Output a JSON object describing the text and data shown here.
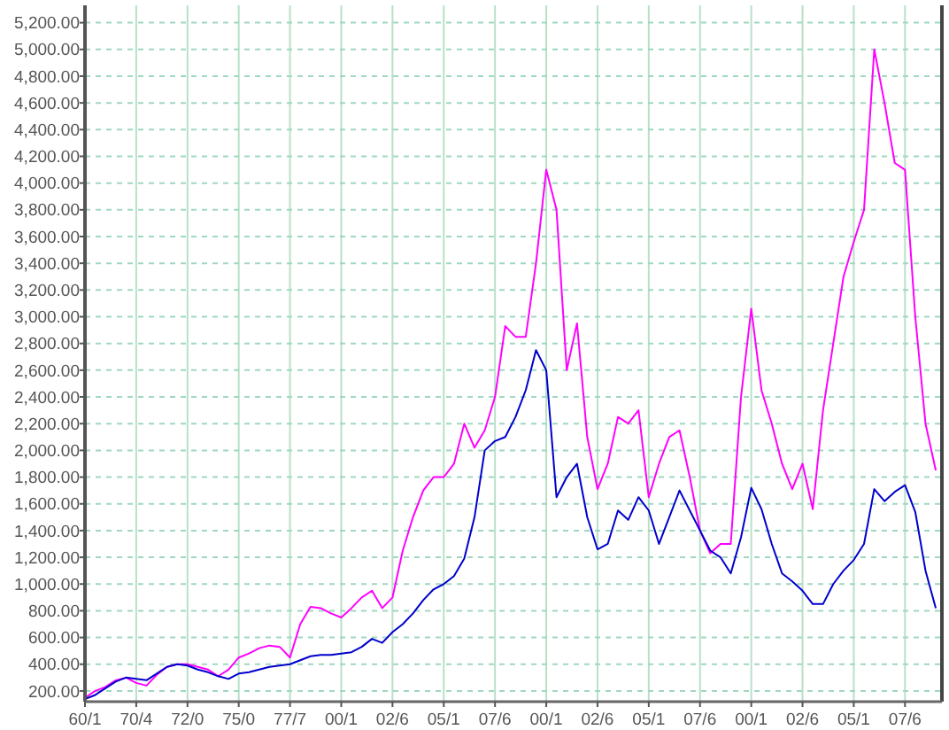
{
  "chart_data": {
    "type": "line",
    "categories": [
      "60/1",
      null,
      null,
      null,
      null,
      "70/4",
      null,
      null,
      null,
      null,
      "72/0",
      null,
      null,
      null,
      null,
      "75/0",
      null,
      null,
      null,
      null,
      "77/7",
      null,
      null,
      null,
      null,
      "00/1",
      null,
      null,
      null,
      null,
      "02/6",
      null,
      null,
      null,
      null,
      "05/1",
      null,
      null,
      null,
      null,
      "07/6",
      null,
      null,
      null,
      null,
      "00/1",
      null,
      null,
      null,
      null,
      "02/6",
      null,
      null,
      null,
      null,
      "05/1",
      null,
      null,
      null,
      null,
      "07/6",
      null,
      null,
      null,
      null,
      "00/1",
      null,
      null,
      null,
      null,
      "02/6",
      null,
      null,
      null,
      null,
      "05/1",
      null,
      null,
      null,
      null,
      "07/6",
      null,
      null,
      null
    ],
    "series": [
      {
        "color": "#ff00ff",
        "values": [
          150,
          200,
          230,
          280,
          300,
          260,
          240,
          320,
          380,
          400,
          400,
          380,
          360,
          310,
          360,
          450,
          480,
          520,
          540,
          530,
          450,
          700,
          830,
          820,
          780,
          750,
          820,
          900,
          950,
          820,
          900,
          1250,
          1500,
          1700,
          1800,
          1800,
          1900,
          2200,
          2020,
          2150,
          2400,
          2930,
          2850,
          2850,
          3400,
          4100,
          3800,
          2600,
          2950,
          2100,
          1710,
          1900,
          2250,
          2200,
          2300,
          1650,
          1900,
          2100,
          2150,
          1800,
          1400,
          1230,
          1300,
          1300,
          2400,
          3060,
          2450,
          2200,
          1900,
          1710,
          1900,
          1560,
          2300,
          2800,
          3300,
          3560,
          3800,
          5000,
          4600,
          4150,
          4100,
          3000,
          2200,
          1850
        ]
      },
      {
        "color": "#0000cc",
        "values": [
          140,
          170,
          220,
          270,
          300,
          290,
          280,
          330,
          380,
          400,
          390,
          360,
          340,
          310,
          290,
          330,
          340,
          360,
          380,
          390,
          400,
          430,
          460,
          470,
          470,
          480,
          490,
          530,
          590,
          560,
          640,
          700,
          780,
          880,
          960,
          1000,
          1060,
          1190,
          1500,
          2000,
          2070,
          2100,
          2250,
          2450,
          2750,
          2600,
          1650,
          1800,
          1900,
          1500,
          1260,
          1300,
          1550,
          1480,
          1650,
          1550,
          1300,
          1500,
          1700,
          1550,
          1400,
          1250,
          1200,
          1080,
          1350,
          1720,
          1560,
          1300,
          1080,
          1020,
          950,
          850,
          850,
          1000,
          1100,
          1180,
          1300,
          1710,
          1620,
          1690,
          1740,
          1540,
          1100,
          820
        ]
      }
    ],
    "ylim": [
      120,
      5330
    ],
    "yticks": [
      {
        "value": 200,
        "label": "200.00"
      },
      {
        "value": 400,
        "label": "400.00"
      },
      {
        "value": 600,
        "label": "600.00"
      },
      {
        "value": 800,
        "label": "800.00"
      },
      {
        "value": 1000,
        "label": "1,000.00"
      },
      {
        "value": 1200,
        "label": "1,200.00"
      },
      {
        "value": 1400,
        "label": "1,400.00"
      },
      {
        "value": 1600,
        "label": "1,600.00"
      },
      {
        "value": 1800,
        "label": "1,800.00"
      },
      {
        "value": 2000,
        "label": "2,000.00"
      },
      {
        "value": 2200,
        "label": "2,200.00"
      },
      {
        "value": 2400,
        "label": "2,400.00"
      },
      {
        "value": 2600,
        "label": "2,600.00"
      },
      {
        "value": 2800,
        "label": "2,800.00"
      },
      {
        "value": 3000,
        "label": "3,000.00"
      },
      {
        "value": 3200,
        "label": "3,200.00"
      },
      {
        "value": 3400,
        "label": "3,400.00"
      },
      {
        "value": 3600,
        "label": "3,600.00"
      },
      {
        "value": 3800,
        "label": "3,800.00"
      },
      {
        "value": 4000,
        "label": "4,000.00"
      },
      {
        "value": 4200,
        "label": "4,200.00"
      },
      {
        "value": 4400,
        "label": "4,400.00"
      },
      {
        "value": 4600,
        "label": "4,600.00"
      },
      {
        "value": 4800,
        "label": "4,800.00"
      },
      {
        "value": 5000,
        "label": "5,000.00"
      },
      {
        "value": 5200,
        "label": "5,200.00"
      }
    ],
    "grid": true
  }
}
